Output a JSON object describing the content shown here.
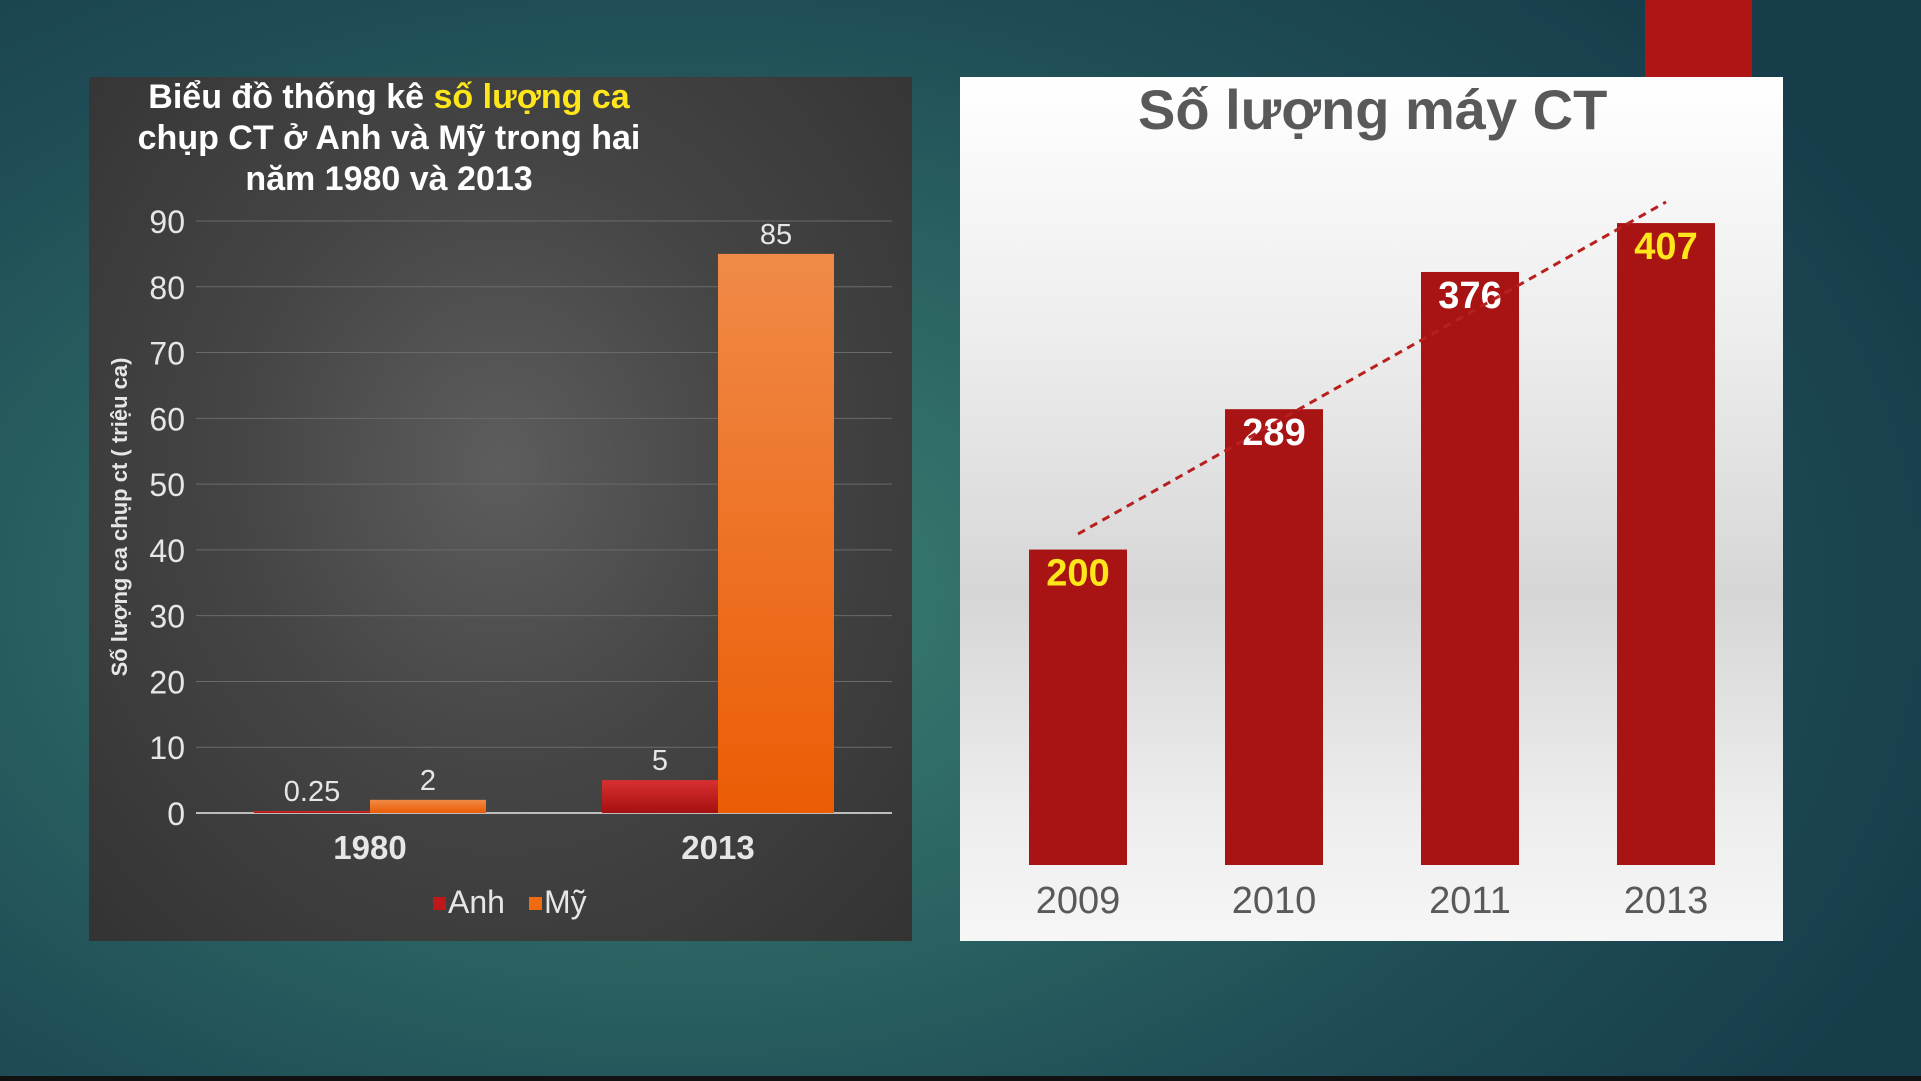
{
  "colors": {
    "background": "#24585a",
    "accent_tab": "#b01515",
    "anh": "#c01818",
    "my": "#f06a10",
    "title_highlight": "#ffe61a",
    "right_bar": "#a81414",
    "right_label_yellow": "#ffe61a"
  },
  "chart_data": [
    {
      "type": "bar",
      "title": "Biểu đồ thống kê số lượng ca chụp CT ở Anh và Mỹ trong hai năm 1980 và 2013",
      "title_parts": {
        "before": "Biểu đồ thống kê ",
        "highlight": "số lượng ca",
        "after": " chụp CT ở Anh và Mỹ trong hai năm 1980 và 2013"
      },
      "ylabel": "Số lượng ca chụp ct ( triệu ca)",
      "xlabel": "",
      "ylim": [
        0,
        90
      ],
      "yticks": [
        0,
        10,
        20,
        30,
        40,
        50,
        60,
        70,
        80,
        90
      ],
      "grid": true,
      "legend": "bottom",
      "categories": [
        "1980",
        "2013"
      ],
      "series": [
        {
          "name": "Anh",
          "values": [
            0.25,
            5
          ],
          "labels": [
            "0.25",
            "5"
          ]
        },
        {
          "name": "Mỹ",
          "values": [
            2,
            85
          ],
          "labels": [
            "2",
            "85"
          ]
        }
      ]
    },
    {
      "type": "bar",
      "title": "Số lượng máy CT",
      "xlabel": "",
      "ylabel": "",
      "ylim": [
        0,
        450
      ],
      "grid": false,
      "trendline": true,
      "categories": [
        "2009",
        "2010",
        "2011",
        "2013"
      ],
      "values": [
        200,
        289,
        376,
        407
      ],
      "labels": [
        "200",
        "289",
        "376",
        "407"
      ],
      "label_colors": [
        "#ffe61a",
        "#ffffff",
        "#ffffff",
        "#ffe61a"
      ]
    }
  ]
}
